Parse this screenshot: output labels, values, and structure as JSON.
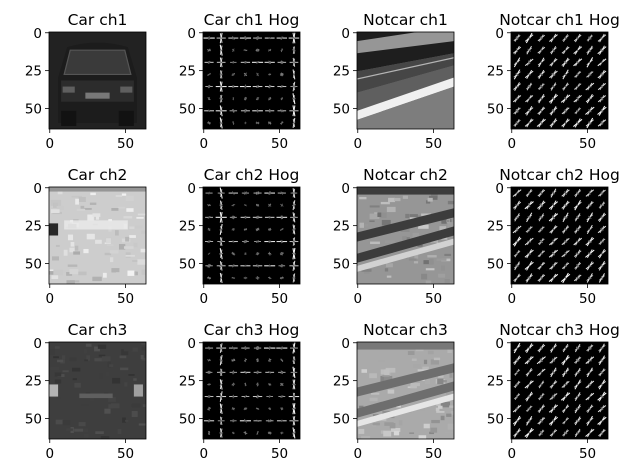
{
  "figure": {
    "panels": [
      {
        "title": "Car ch1",
        "kind": "image",
        "scene": "car_front",
        "channel": 1
      },
      {
        "title": "Car ch1 Hog",
        "kind": "hog",
        "orientation": "mixed"
      },
      {
        "title": "Notcar ch1",
        "kind": "image",
        "scene": "guardrail",
        "channel": 1
      },
      {
        "title": "Notcar ch1 Hog",
        "kind": "hog",
        "orientation": "diagonal"
      },
      {
        "title": "Car ch2",
        "kind": "image",
        "scene": "car_front",
        "channel": 2
      },
      {
        "title": "Car ch2 Hog",
        "kind": "hog",
        "orientation": "mixed"
      },
      {
        "title": "Notcar ch2",
        "kind": "image",
        "scene": "guardrail",
        "channel": 2
      },
      {
        "title": "Notcar ch2 Hog",
        "kind": "hog",
        "orientation": "diagonal"
      },
      {
        "title": "Car ch3",
        "kind": "image",
        "scene": "car_front",
        "channel": 3
      },
      {
        "title": "Car ch3 Hog",
        "kind": "hog",
        "orientation": "mixed"
      },
      {
        "title": "Notcar ch3",
        "kind": "image",
        "scene": "guardrail",
        "channel": 3
      },
      {
        "title": "Notcar ch3 Hog",
        "kind": "hog",
        "orientation": "diagonal"
      }
    ],
    "x_ticks": [
      "0",
      "50"
    ],
    "y_ticks": [
      "0",
      "25",
      "50"
    ]
  }
}
